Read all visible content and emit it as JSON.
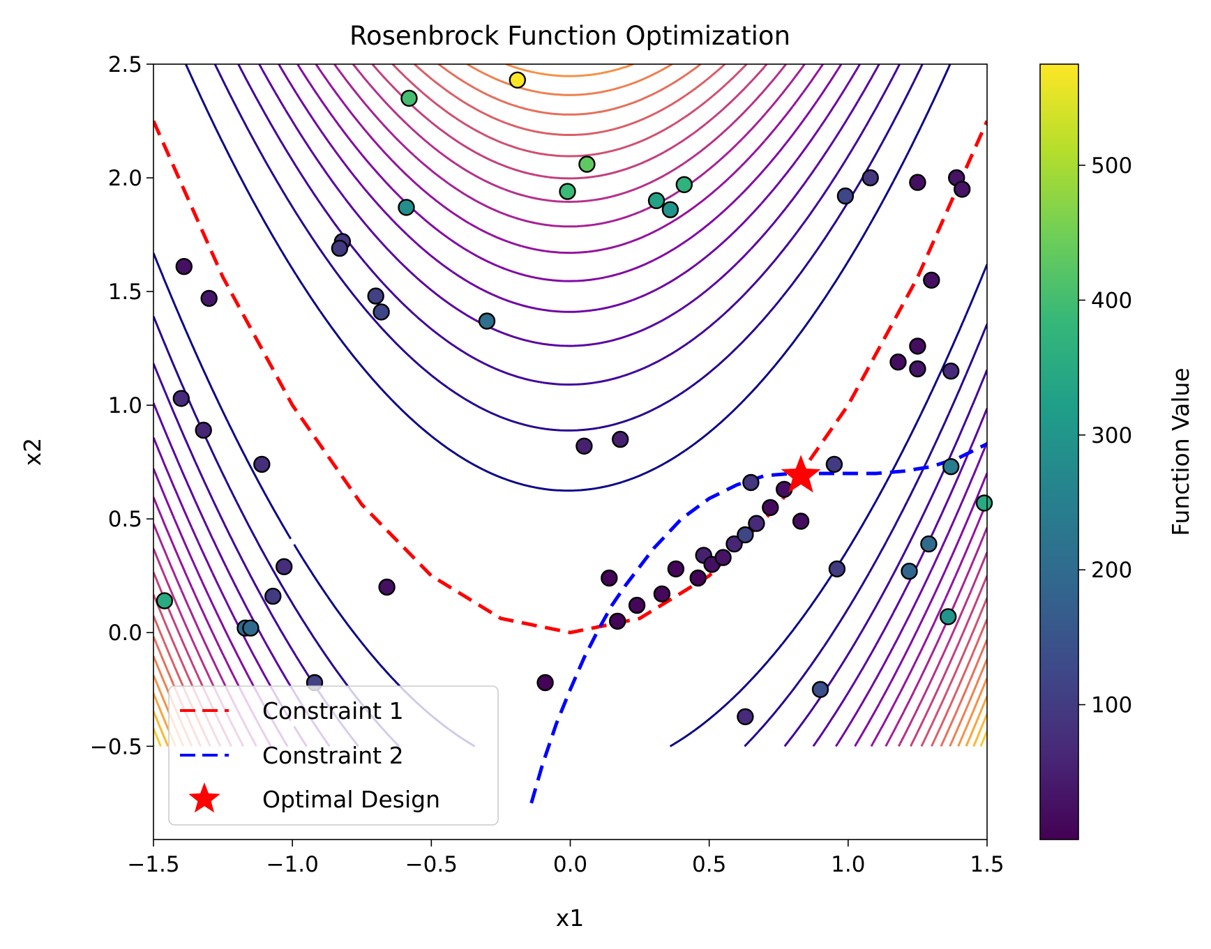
{
  "chart_data": {
    "type": "scatter",
    "title": "Rosenbrock Function Optimization",
    "xlabel": "x1",
    "ylabel": "x2",
    "xlim": [
      -1.5,
      1.5
    ],
    "ylim": [
      -0.91,
      2.5
    ],
    "xticks": [
      -1.5,
      -1.0,
      -0.5,
      0.0,
      0.5,
      1.0,
      1.5
    ],
    "xtick_labels": [
      "−1.5",
      "−1.0",
      "−0.5",
      "0.0",
      "0.5",
      "1.0",
      "1.5"
    ],
    "yticks": [
      -0.5,
      0.0,
      0.5,
      1.0,
      1.5,
      2.0,
      2.5
    ],
    "ytick_labels": [
      "−0.5",
      "0.0",
      "0.5",
      "1.0",
      "1.5",
      "2.0",
      "2.5"
    ],
    "grid": false,
    "contour": {
      "function": "(1 - x1)^2 + 100*(x2 - x1^2)^2",
      "x_range": [
        -1.5,
        1.5
      ],
      "y_range": [
        -0.5,
        2.5
      ],
      "levels": [
        40,
        80,
        120,
        160,
        200,
        240,
        280,
        320,
        360,
        400,
        440,
        480,
        520,
        560,
        600,
        640,
        680,
        720,
        760,
        800
      ],
      "colormap": "plasma"
    },
    "series": [
      {
        "name": "Constraint 1",
        "kind": "line",
        "style": "dashed",
        "color": "#ff0000",
        "x": [
          -1.5,
          -1.25,
          -1.0,
          -0.75,
          -0.5,
          -0.25,
          0.0,
          0.25,
          0.5,
          0.75,
          1.0,
          1.25,
          1.5
        ],
        "y": [
          2.25,
          1.5625,
          1.0,
          0.5625,
          0.25,
          0.0625,
          0.0,
          0.0625,
          0.25,
          0.5625,
          1.0,
          1.5625,
          2.25
        ]
      },
      {
        "name": "Constraint 2",
        "kind": "line",
        "style": "dashed",
        "color": "#0000ff",
        "x": [
          -0.14,
          -0.1,
          -0.05,
          0.0,
          0.05,
          0.1,
          0.15,
          0.2,
          0.3,
          0.4,
          0.5,
          0.6,
          0.7,
          0.8,
          0.9,
          1.0,
          1.1,
          1.2,
          1.3,
          1.4,
          1.5
        ],
        "y": [
          -0.75,
          -0.58,
          -0.4,
          -0.25,
          -0.11,
          0.01,
          0.12,
          0.21,
          0.37,
          0.5,
          0.59,
          0.65,
          0.69,
          0.7,
          0.7,
          0.7,
          0.7,
          0.71,
          0.73,
          0.77,
          0.83
        ]
      },
      {
        "name": "Optimal Design",
        "kind": "marker",
        "marker": "star",
        "color": "#ff0000",
        "x": [
          0.83
        ],
        "y": [
          0.69
        ]
      }
    ],
    "samples": {
      "x": [
        -0.19,
        -0.58,
        0.06,
        -0.01,
        0.41,
        0.31,
        0.36,
        -0.59,
        -0.82,
        -0.83,
        -0.7,
        -0.68,
        -0.3,
        -1.39,
        -1.3,
        -1.4,
        -1.32,
        -1.11,
        -1.03,
        -1.07,
        -1.17,
        -1.15,
        -0.66,
        -1.46,
        -0.92,
        -0.09,
        0.05,
        0.18,
        0.14,
        0.17,
        0.24,
        0.33,
        0.38,
        0.46,
        0.48,
        0.51,
        0.55,
        0.59,
        0.63,
        0.65,
        0.67,
        0.72,
        0.77,
        0.83,
        0.95,
        0.96,
        0.9,
        0.63,
        0.99,
        1.08,
        1.25,
        1.39,
        1.41,
        1.3,
        1.25,
        1.18,
        1.25,
        1.37,
        1.37,
        1.29,
        1.22,
        1.36,
        1.49
      ],
      "y": [
        2.43,
        2.35,
        2.06,
        1.94,
        1.97,
        1.9,
        1.86,
        1.87,
        1.72,
        1.69,
        1.48,
        1.41,
        1.37,
        1.61,
        1.47,
        1.03,
        0.89,
        0.74,
        0.29,
        0.16,
        0.02,
        0.02,
        0.2,
        0.14,
        -0.22,
        -0.22,
        0.82,
        0.85,
        0.24,
        0.05,
        0.12,
        0.17,
        0.28,
        0.24,
        0.34,
        0.3,
        0.33,
        0.39,
        0.43,
        0.66,
        0.48,
        0.55,
        0.63,
        0.49,
        0.74,
        0.28,
        -0.25,
        -0.37,
        1.92,
        2.0,
        1.98,
        2.0,
        1.95,
        1.55,
        1.26,
        1.19,
        1.16,
        1.15,
        0.73,
        0.39,
        0.27,
        0.07,
        0.57
      ],
      "values": [
        575,
        400,
        430,
        390,
        370,
        330,
        300,
        285,
        90,
        95,
        110,
        120,
        210,
        25,
        35,
        70,
        60,
        75,
        75,
        100,
        200,
        200,
        25,
        350,
        110,
        5,
        50,
        50,
        5,
        5,
        10,
        12,
        8,
        5,
        50,
        25,
        30,
        60,
        120,
        90,
        70,
        15,
        20,
        20,
        100,
        100,
        140,
        70,
        120,
        90,
        25,
        30,
        30,
        25,
        20,
        20,
        35,
        70,
        240,
        200,
        190,
        300,
        350
      ],
      "colormap": "viridis",
      "edgecolor": "#000000"
    },
    "colorbar": {
      "label": "Function Value",
      "range": [
        0,
        575
      ],
      "ticks": [
        100,
        200,
        300,
        400,
        500
      ],
      "tick_labels": [
        "100",
        "200",
        "300",
        "400",
        "500"
      ],
      "colormap": "viridis"
    },
    "legend": {
      "position": "lower-left",
      "entries": [
        "Constraint 1",
        "Constraint 2",
        "Optimal Design"
      ]
    }
  }
}
